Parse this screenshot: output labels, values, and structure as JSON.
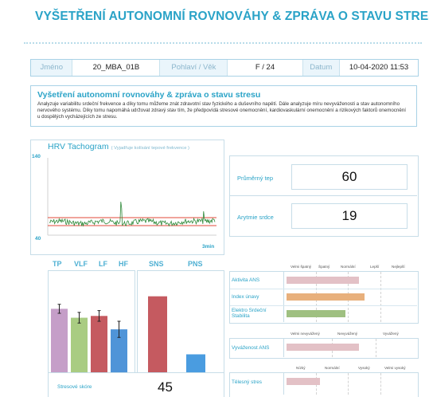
{
  "header": {
    "title": "VYŠETŘENÍ AUTONOMNÍ ROVNOVÁHY & ZPRÁVA O STAVU STRESU"
  },
  "patient": {
    "name_label": "Jméno",
    "name_value": "20_MBA_01B",
    "sexage_label": "Pohlaví / Věk",
    "sexage_value": "F / 24",
    "date_label": "Datum",
    "date_value": "10-04-2020 11:53"
  },
  "description": {
    "title": "Vyšetření autonomní rovnováhy & zpráva o stavu stresu",
    "text": "Analyzuje variabilitu srdeční frekvence a díky tomu můžeme znát zdravotní stav fyzického a duševního napětí. Dále analyzuje míru nevyváženosti a stav autonomního nervového systému. Díky tomu napomáhá udržovat zdravý stav tím, že předpovídá stresové onemocnění, kardiovaskulární onemocnění a rizikových faktorů onemocnění u dospělých vycházejících ze stresu."
  },
  "hrv": {
    "title": "HRV Tachogram",
    "subtitle": "( Vyjadřuje kolísání tepové frekvence )",
    "y_max_label": "140",
    "y_min_label": "40",
    "x_end_label": "3min"
  },
  "stats": {
    "avg_hr_label": "Průměrný tep",
    "avg_hr_value": "60",
    "arrhythmia_label": "Arytmie srdce",
    "arrhythmia_value": "19"
  },
  "chart_data": [
    {
      "type": "bar",
      "categories": [
        "TP",
        "VLF",
        "LF",
        "HF"
      ],
      "values": [
        72,
        62,
        64,
        49
      ],
      "errors": [
        5,
        6,
        6,
        9
      ],
      "ylim": [
        0,
        100
      ],
      "colors": [
        "#c59ec8",
        "#a9cc82",
        "#c55a60",
        "#4f94d8"
      ]
    },
    {
      "type": "bar",
      "categories": [
        "SNS",
        "PNS"
      ],
      "values": [
        86,
        21
      ],
      "ylim": [
        0,
        100
      ],
      "colors": [
        "#c55a60",
        "#4a9ce0"
      ]
    }
  ],
  "ans_table": {
    "scale": [
      "Velmi špatný",
      "Špatný",
      "Normální",
      "Lepší",
      "Nejlepší"
    ],
    "rows": [
      {
        "label": "Aktivita ANS",
        "value": 0.57,
        "color": "#e3c1c6"
      },
      {
        "label": "Index únavy",
        "value": 0.61,
        "color": "#e8b07c"
      },
      {
        "label": "Elektro Srdeční Stabilita",
        "value": 0.46,
        "color": "#9fc081"
      }
    ]
  },
  "balance_table": {
    "scale": [
      "Velmi nevyvážený",
      "Nevyvážený",
      "Vyvážený"
    ],
    "rows": [
      {
        "label": "Vyváženost ANS",
        "value": 0.57,
        "color": "#e3c1c6"
      }
    ]
  },
  "stress_table": {
    "scale": [
      "Nízký",
      "Normální",
      "Vysoký",
      "Velmi vysoký"
    ],
    "rows": [
      {
        "label": "Tělesný stres",
        "value": 0.26,
        "color": "#e3c1c6"
      }
    ]
  },
  "stress_score": {
    "label": "Stresové skóre",
    "value": "45"
  }
}
